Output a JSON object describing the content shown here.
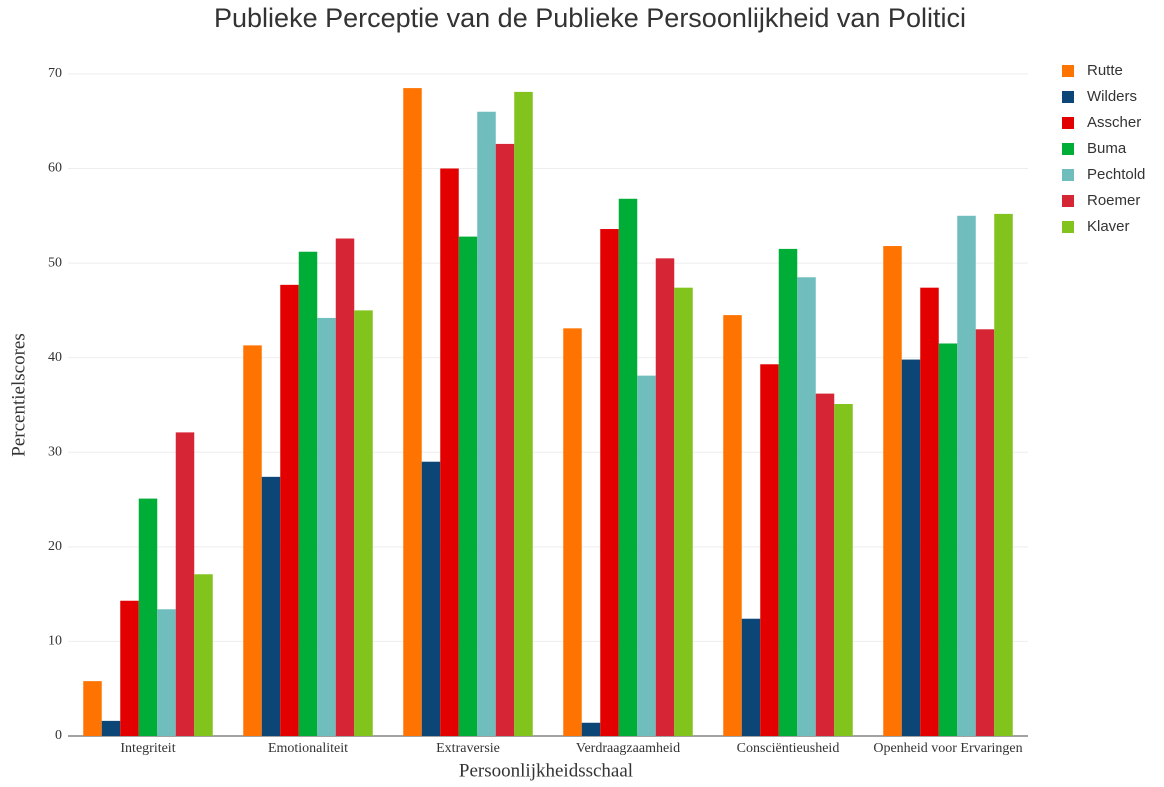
{
  "chart_data": {
    "type": "bar",
    "title": "Publieke Perceptie van de Publieke Persoonlijkheid van Politici",
    "x_label": "Persoonlijkheidsschaal",
    "y_label": "Percentielscores",
    "categories": [
      "Integriteit",
      "Emotionaliteit",
      "Extraversie",
      "Verdraagzaamheid",
      "Consciëntieusheid",
      "Openheid voor Ervaringen"
    ],
    "series": [
      {
        "name": "Rutte",
        "color": "#ff7300",
        "values": [
          5.8,
          41.3,
          68.5,
          43.1,
          44.5,
          51.8
        ]
      },
      {
        "name": "Wilders",
        "color": "#0b4677",
        "values": [
          1.6,
          27.4,
          29.0,
          1.4,
          12.4,
          39.8
        ]
      },
      {
        "name": "Asscher",
        "color": "#e30000",
        "values": [
          14.3,
          47.7,
          60.0,
          53.6,
          39.3,
          47.4
        ]
      },
      {
        "name": "Buma",
        "color": "#00ad36",
        "values": [
          25.1,
          51.2,
          52.8,
          56.8,
          51.5,
          41.5
        ]
      },
      {
        "name": "Pechtold",
        "color": "#6fbdbd",
        "values": [
          13.4,
          44.2,
          66.0,
          38.1,
          48.5,
          55.0
        ]
      },
      {
        "name": "Roemer",
        "color": "#d62534",
        "values": [
          32.1,
          52.6,
          62.6,
          50.5,
          36.2,
          43.0
        ]
      },
      {
        "name": "Klaver",
        "color": "#82c31e",
        "values": [
          17.1,
          45.0,
          68.1,
          47.4,
          35.1,
          55.2
        ]
      }
    ],
    "ylim": [
      0,
      72
    ],
    "yticks": [
      0,
      10,
      20,
      30,
      40,
      50,
      60,
      70
    ],
    "grid": true,
    "legend": "right"
  }
}
